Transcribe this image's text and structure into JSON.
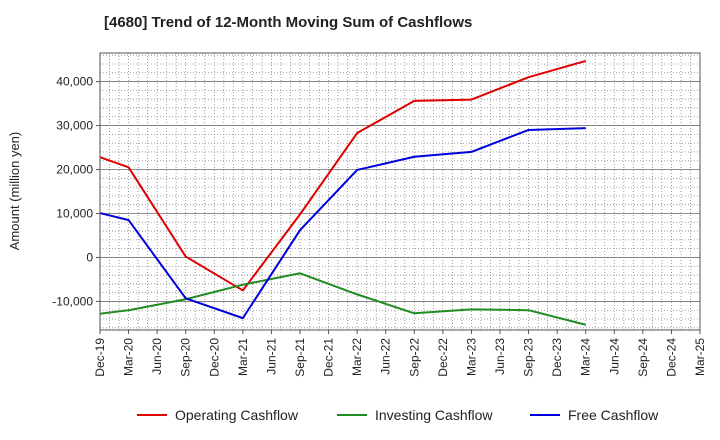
{
  "chart_data": {
    "type": "line",
    "title": "[4680]  Trend of 12-Month Moving Sum of Cashflows",
    "xlabel": "",
    "ylabel": "Amount (million yen)",
    "ylim": [
      -16500,
      46500
    ],
    "yticks": [
      -10000,
      0,
      10000,
      20000,
      30000,
      40000
    ],
    "ytick_labels": [
      "-10,000",
      "0",
      "10,000",
      "20,000",
      "30,000",
      "40,000"
    ],
    "x": [
      "Dec-19",
      "Mar-20",
      "Jun-20",
      "Sep-20",
      "Dec-20",
      "Mar-21",
      "Jun-21",
      "Sep-21",
      "Dec-21",
      "Mar-22",
      "Jun-22",
      "Sep-22",
      "Dec-22",
      "Mar-23",
      "Jun-23",
      "Sep-23",
      "Dec-23",
      "Mar-24",
      "Jun-24",
      "Sep-24",
      "Dec-24",
      "Mar-25"
    ],
    "grid": true,
    "legend_position": "bottom",
    "series": [
      {
        "name": "Operating Cashflow",
        "color": "#e00000",
        "values": [
          22800,
          20500,
          null,
          200,
          null,
          -7500,
          null,
          9800,
          null,
          28300,
          null,
          35600,
          null,
          35900,
          null,
          41000,
          null,
          44700,
          null,
          null,
          null,
          null
        ]
      },
      {
        "name": "Investing Cashflow",
        "color": "#228b22",
        "values": [
          -12800,
          -12000,
          null,
          -9500,
          null,
          -6200,
          null,
          -3600,
          null,
          -8400,
          null,
          -12700,
          null,
          -11800,
          null,
          -12000,
          null,
          -15300,
          null,
          null,
          null,
          null
        ]
      },
      {
        "name": "Free Cashflow",
        "color": "#0000dd",
        "values": [
          10100,
          8500,
          null,
          -9300,
          null,
          -13800,
          null,
          6200,
          null,
          19900,
          null,
          22900,
          null,
          24000,
          null,
          29000,
          null,
          29400,
          null,
          null,
          null,
          null
        ]
      }
    ]
  }
}
